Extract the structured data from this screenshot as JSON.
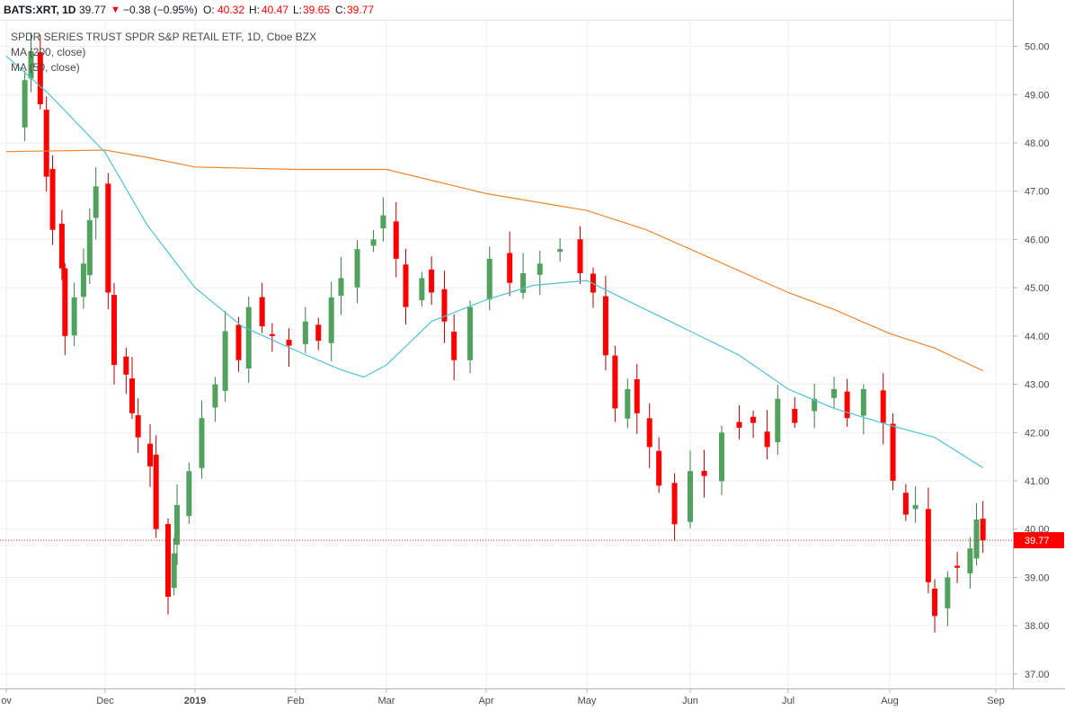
{
  "header": {
    "symbol": "BATS:XRT, 1D",
    "last": "39.77",
    "down_arrow": "▼",
    "change": "−0.38 (−0.95%)",
    "open_label": "O:",
    "open": "40.32",
    "high_label": "H:",
    "high": "40.47",
    "low_label": "L:",
    "low": "39.65",
    "close_label": "C:",
    "close": "39.77"
  },
  "legend": {
    "title": "SPDR SERIES TRUST SPDR S&P RETAIL ETF, 1D, Cboe BZX",
    "ma200": "MA (200, close)",
    "ma50": "MA (50, close)"
  },
  "colors": {
    "up": "#53a15e",
    "down": "#ff0000",
    "ma200": "#f5852b",
    "ma50": "#4fc3d6",
    "grid": "#eeeef0",
    "price_line": "#c62828",
    "price_badge": "#ff0000"
  },
  "chart_data": {
    "type": "candlestick",
    "y_ticks": [
      "37.00",
      "38.00",
      "39.00",
      "40.00",
      "41.00",
      "42.00",
      "43.00",
      "44.00",
      "45.00",
      "46.00",
      "47.00",
      "48.00",
      "49.00",
      "50.00"
    ],
    "x_ticks": [
      {
        "label": "ov",
        "date": "2018-11-01"
      },
      {
        "label": "Dec",
        "date": "2018-12-03"
      },
      {
        "label": "2019",
        "date": "2019-01-02"
      },
      {
        "label": "Feb",
        "date": "2019-02-01"
      },
      {
        "label": "Mar",
        "date": "2019-03-01"
      },
      {
        "label": "Apr",
        "date": "2019-04-01"
      },
      {
        "label": "May",
        "date": "2019-05-01"
      },
      {
        "label": "Jun",
        "date": "2019-06-03"
      },
      {
        "label": "Jul",
        "date": "2019-07-01"
      },
      {
        "label": "Aug",
        "date": "2019-08-01"
      },
      {
        "label": "Sep",
        "date": "2019-09-03"
      }
    ],
    "ylim": [
      36.7,
      50.55
    ],
    "last_price": "39.77",
    "closes": [
      {
        "date": "2018-11-01",
        "close": 48.2
      },
      {
        "date": "2018-11-07",
        "close": 49.3
      },
      {
        "date": "2018-11-09",
        "close": 49.9
      },
      {
        "date": "2018-11-12",
        "close": 48.8
      },
      {
        "date": "2018-11-14",
        "close": 47.3
      },
      {
        "date": "2018-11-16",
        "close": 46.2
      },
      {
        "date": "2018-11-19",
        "close": 45.4
      },
      {
        "date": "2018-11-20",
        "close": 44.0
      },
      {
        "date": "2018-11-23",
        "close": 44.8
      },
      {
        "date": "2018-11-26",
        "close": 45.5
      },
      {
        "date": "2018-11-28",
        "close": 46.4
      },
      {
        "date": "2018-11-30",
        "close": 47.1
      },
      {
        "date": "2018-12-04",
        "close": 44.9
      },
      {
        "date": "2018-12-06",
        "close": 43.4
      },
      {
        "date": "2018-12-10",
        "close": 43.2
      },
      {
        "date": "2018-12-12",
        "close": 42.4
      },
      {
        "date": "2018-12-14",
        "close": 41.9
      },
      {
        "date": "2018-12-18",
        "close": 41.3
      },
      {
        "date": "2018-12-20",
        "close": 40.0
      },
      {
        "date": "2018-12-24",
        "close": 38.6
      },
      {
        "date": "2018-12-26",
        "close": 39.5
      },
      {
        "date": "2018-12-27",
        "close": 40.5
      },
      {
        "date": "2018-12-31",
        "close": 41.2
      },
      {
        "date": "2019-01-04",
        "close": 42.3
      },
      {
        "date": "2019-01-08",
        "close": 43.0
      },
      {
        "date": "2019-01-11",
        "close": 44.1
      },
      {
        "date": "2019-01-15",
        "close": 43.5
      },
      {
        "date": "2019-01-18",
        "close": 44.6
      },
      {
        "date": "2019-01-22",
        "close": 44.2
      },
      {
        "date": "2019-01-25",
        "close": 44.0
      },
      {
        "date": "2019-01-30",
        "close": 43.8
      },
      {
        "date": "2019-02-04",
        "close": 44.3
      },
      {
        "date": "2019-02-08",
        "close": 43.9
      },
      {
        "date": "2019-02-12",
        "close": 44.8
      },
      {
        "date": "2019-02-15",
        "close": 45.2
      },
      {
        "date": "2019-02-20",
        "close": 45.8
      },
      {
        "date": "2019-02-25",
        "close": 46.0
      },
      {
        "date": "2019-02-28",
        "close": 46.5
      },
      {
        "date": "2019-03-04",
        "close": 45.6
      },
      {
        "date": "2019-03-07",
        "close": 44.6
      },
      {
        "date": "2019-03-12",
        "close": 45.2
      },
      {
        "date": "2019-03-15",
        "close": 44.9
      },
      {
        "date": "2019-03-19",
        "close": 44.3
      },
      {
        "date": "2019-03-22",
        "close": 43.5
      },
      {
        "date": "2019-03-27",
        "close": 44.6
      },
      {
        "date": "2019-04-02",
        "close": 45.6
      },
      {
        "date": "2019-04-08",
        "close": 45.1
      },
      {
        "date": "2019-04-12",
        "close": 45.3
      },
      {
        "date": "2019-04-17",
        "close": 45.5
      },
      {
        "date": "2019-04-23",
        "close": 45.8
      },
      {
        "date": "2019-04-29",
        "close": 45.3
      },
      {
        "date": "2019-05-03",
        "close": 44.9
      },
      {
        "date": "2019-05-07",
        "close": 43.6
      },
      {
        "date": "2019-05-10",
        "close": 42.5
      },
      {
        "date": "2019-05-14",
        "close": 42.9
      },
      {
        "date": "2019-05-17",
        "close": 42.4
      },
      {
        "date": "2019-05-21",
        "close": 41.7
      },
      {
        "date": "2019-05-24",
        "close": 40.9
      },
      {
        "date": "2019-05-29",
        "close": 40.1
      },
      {
        "date": "2019-06-03",
        "close": 41.2
      },
      {
        "date": "2019-06-07",
        "close": 41.1
      },
      {
        "date": "2019-06-12",
        "close": 42.0
      },
      {
        "date": "2019-06-17",
        "close": 42.1
      },
      {
        "date": "2019-06-21",
        "close": 42.2
      },
      {
        "date": "2019-06-25",
        "close": 41.7
      },
      {
        "date": "2019-06-28",
        "close": 42.7
      },
      {
        "date": "2019-07-03",
        "close": 42.2
      },
      {
        "date": "2019-07-09",
        "close": 42.7
      },
      {
        "date": "2019-07-15",
        "close": 42.9
      },
      {
        "date": "2019-07-19",
        "close": 42.3
      },
      {
        "date": "2019-07-24",
        "close": 42.9
      },
      {
        "date": "2019-07-30",
        "close": 42.2
      },
      {
        "date": "2019-08-02",
        "close": 41.0
      },
      {
        "date": "2019-08-06",
        "close": 40.3
      },
      {
        "date": "2019-08-09",
        "close": 40.5
      },
      {
        "date": "2019-08-13",
        "close": 38.9
      },
      {
        "date": "2019-08-15",
        "close": 38.2
      },
      {
        "date": "2019-08-19",
        "close": 39.0
      },
      {
        "date": "2019-08-22",
        "close": 39.2
      },
      {
        "date": "2019-08-26",
        "close": 39.6
      },
      {
        "date": "2019-08-28",
        "close": 40.2
      },
      {
        "date": "2019-08-30",
        "close": 39.77
      }
    ],
    "ma200": [
      {
        "date": "2018-11-01",
        "value": 47.82
      },
      {
        "date": "2018-12-03",
        "value": 47.85
      },
      {
        "date": "2018-12-17",
        "value": 47.7
      },
      {
        "date": "2019-01-02",
        "value": 47.5
      },
      {
        "date": "2019-02-01",
        "value": 47.45
      },
      {
        "date": "2019-03-01",
        "value": 47.45
      },
      {
        "date": "2019-04-01",
        "value": 46.95
      },
      {
        "date": "2019-05-01",
        "value": 46.6
      },
      {
        "date": "2019-05-20",
        "value": 46.2
      },
      {
        "date": "2019-06-03",
        "value": 45.8
      },
      {
        "date": "2019-07-01",
        "value": 44.9
      },
      {
        "date": "2019-07-15",
        "value": 44.55
      },
      {
        "date": "2019-08-01",
        "value": 44.05
      },
      {
        "date": "2019-08-15",
        "value": 43.75
      },
      {
        "date": "2019-08-30",
        "value": 43.28
      }
    ],
    "ma50": [
      {
        "date": "2018-11-01",
        "value": 49.8
      },
      {
        "date": "2018-11-15",
        "value": 49.0
      },
      {
        "date": "2018-12-03",
        "value": 47.8
      },
      {
        "date": "2018-12-17",
        "value": 46.3
      },
      {
        "date": "2019-01-02",
        "value": 45.0
      },
      {
        "date": "2019-01-16",
        "value": 44.2
      },
      {
        "date": "2019-02-01",
        "value": 43.7
      },
      {
        "date": "2019-02-15",
        "value": 43.3
      },
      {
        "date": "2019-02-22",
        "value": 43.15
      },
      {
        "date": "2019-03-01",
        "value": 43.4
      },
      {
        "date": "2019-03-15",
        "value": 44.3
      },
      {
        "date": "2019-04-01",
        "value": 44.75
      },
      {
        "date": "2019-04-15",
        "value": 45.05
      },
      {
        "date": "2019-05-01",
        "value": 45.15
      },
      {
        "date": "2019-05-15",
        "value": 44.7
      },
      {
        "date": "2019-06-03",
        "value": 44.1
      },
      {
        "date": "2019-06-17",
        "value": 43.6
      },
      {
        "date": "2019-07-01",
        "value": 42.9
      },
      {
        "date": "2019-07-15",
        "value": 42.5
      },
      {
        "date": "2019-08-01",
        "value": 42.15
      },
      {
        "date": "2019-08-15",
        "value": 41.9
      },
      {
        "date": "2019-08-30",
        "value": 41.27
      }
    ]
  }
}
